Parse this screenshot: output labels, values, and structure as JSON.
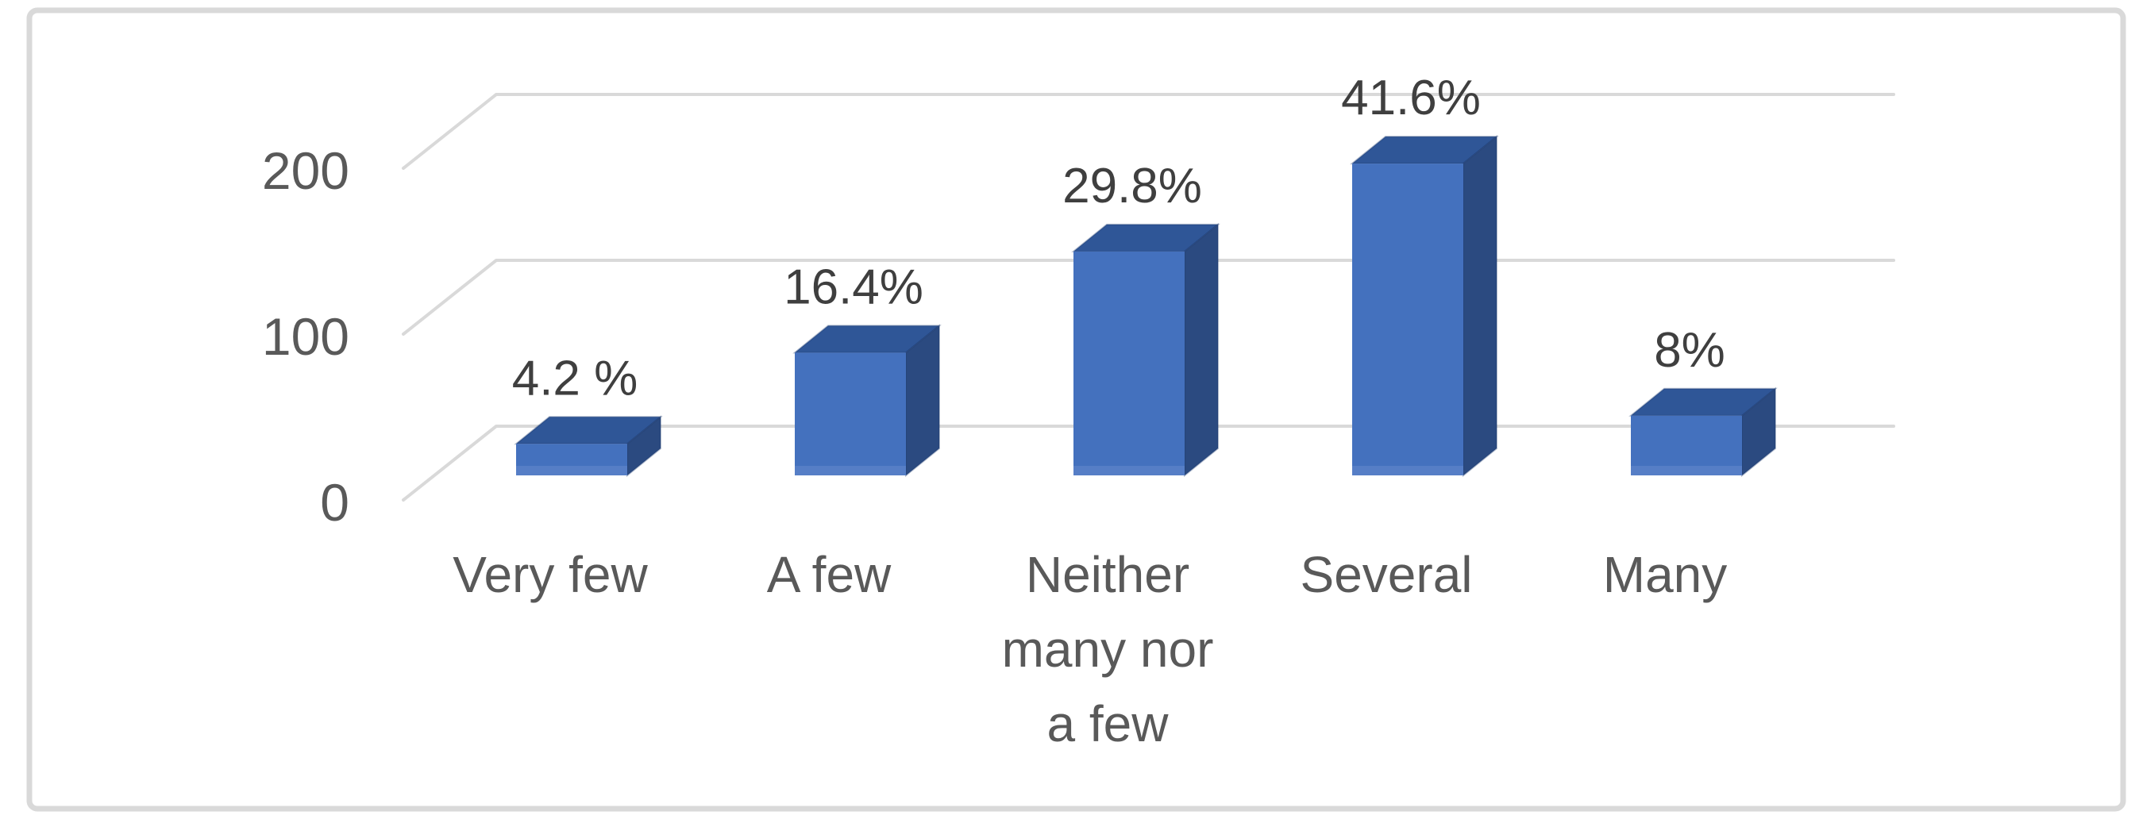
{
  "chart_data": {
    "type": "bar",
    "projection": "3d-column",
    "title": "",
    "xlabel": "",
    "ylabel": "",
    "categories": [
      "Very few",
      "A few",
      "Neither many nor a few",
      "Several",
      "Many"
    ],
    "category_lines": [
      [
        "Very few"
      ],
      [
        "A few"
      ],
      [
        "Neither",
        "many nor",
        "a few"
      ],
      [
        "Several"
      ],
      [
        "Many"
      ]
    ],
    "values": [
      19,
      74,
      135,
      188,
      36
    ],
    "data_labels": [
      "4.2 %",
      "16.4%",
      "29.8%",
      "41.6%",
      "8%"
    ],
    "y_ticks": [
      0,
      100,
      200
    ],
    "y_tick_labels": [
      "0",
      "100",
      "200"
    ],
    "ylim": [
      0,
      250
    ],
    "grid": true,
    "legend": false,
    "colors": {
      "bar_front": "#4471BE",
      "bar_front_bottom_glow": "#6C8FD0",
      "bar_top": "#2F5697",
      "bar_side": "#2B4A80",
      "bar_edge": "#1D3A6E",
      "gridline": "#D9D9D9",
      "frame_border": "#D9D9D9",
      "background": "#FFFFFF",
      "data_label_text": "#3F3F3F",
      "axis_label_text": "#595959",
      "category_label_text": "#595959"
    }
  }
}
